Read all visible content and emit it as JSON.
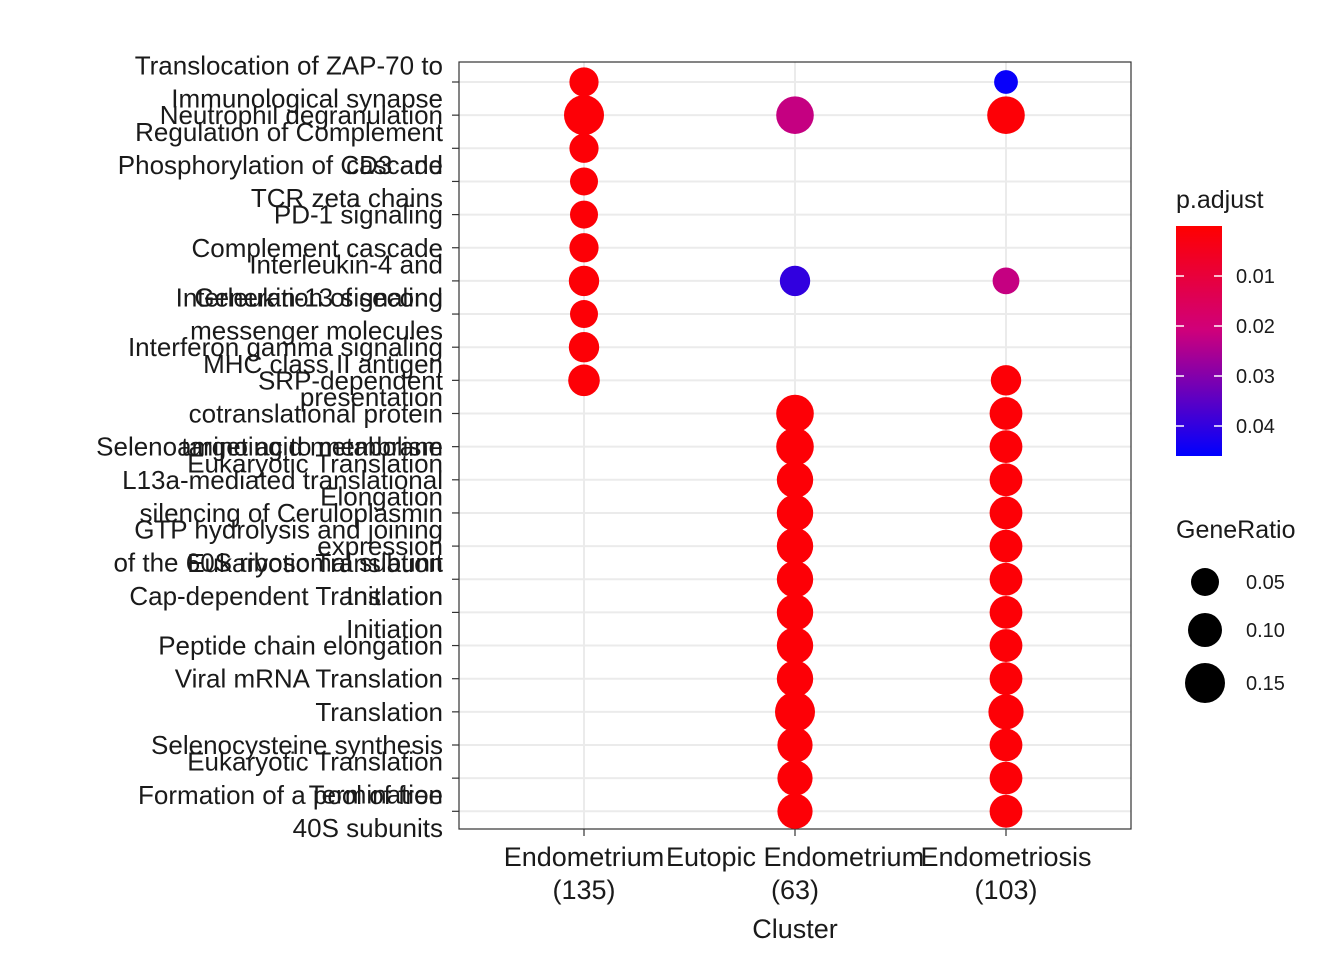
{
  "chart_data": {
    "type": "scatter",
    "chart_kind": "dotplot",
    "title": "",
    "xlabel": "Cluster",
    "ylabel": "",
    "grid": true,
    "legend_placement": "right",
    "clusters": [
      [
        "Endometrium",
        "(135)"
      ],
      [
        "Eutopic Endometrium",
        "(63)"
      ],
      [
        "Endometriosis",
        "(103)"
      ]
    ],
    "terms": [
      [
        "Translocation of ZAP-70 to",
        "Immunological synapse"
      ],
      [
        "Neutrophil degranulation"
      ],
      [
        "Regulation of Complement",
        "cascade"
      ],
      [
        "Phosphorylation of CD3 and",
        "TCR zeta chains"
      ],
      [
        "PD-1 signaling"
      ],
      [
        "Complement cascade"
      ],
      [
        "Interleukin-4 and",
        "Interleukin-13 signaling"
      ],
      [
        "Generation of second",
        "messenger molecules"
      ],
      [
        "Interferon gamma signaling"
      ],
      [
        "MHC class II antigen",
        "presentation"
      ],
      [
        "SRP-dependent",
        "cotranslational protein",
        "targeting to membrane"
      ],
      [
        "Selenoamino acid metabolism"
      ],
      [
        "Eukaryotic Translation",
        "Elongation"
      ],
      [
        "L13a-mediated translational",
        "silencing of Ceruloplasmin",
        "expression"
      ],
      [
        "GTP hydrolysis and joining",
        "of the 60S ribosomal subunit"
      ],
      [
        "Eukaryotic Translation",
        "Initiation"
      ],
      [
        "Cap-dependent Translation",
        "Initiation"
      ],
      [
        "Peptide chain elongation"
      ],
      [
        "Viral mRNA Translation"
      ],
      [
        "Translation"
      ],
      [
        "Selenocysteine synthesis"
      ],
      [
        "Eukaryotic Translation",
        "Termination"
      ],
      [
        "Formation of a pool of free",
        "40S subunits"
      ]
    ],
    "points": [
      {
        "cluster": 0,
        "term": 0,
        "gene_ratio": 0.06,
        "p_adjust": 0.001
      },
      {
        "cluster": 0,
        "term": 1,
        "gene_ratio": 0.15,
        "p_adjust": 0.001
      },
      {
        "cluster": 0,
        "term": 2,
        "gene_ratio": 0.06,
        "p_adjust": 0.001
      },
      {
        "cluster": 0,
        "term": 3,
        "gene_ratio": 0.05,
        "p_adjust": 0.001
      },
      {
        "cluster": 0,
        "term": 4,
        "gene_ratio": 0.05,
        "p_adjust": 0.001
      },
      {
        "cluster": 0,
        "term": 5,
        "gene_ratio": 0.06,
        "p_adjust": 0.001
      },
      {
        "cluster": 0,
        "term": 6,
        "gene_ratio": 0.07,
        "p_adjust": 0.001
      },
      {
        "cluster": 0,
        "term": 7,
        "gene_ratio": 0.05,
        "p_adjust": 0.001
      },
      {
        "cluster": 0,
        "term": 8,
        "gene_ratio": 0.07,
        "p_adjust": 0.001
      },
      {
        "cluster": 0,
        "term": 9,
        "gene_ratio": 0.08,
        "p_adjust": 0.001
      },
      {
        "cluster": 1,
        "term": 1,
        "gene_ratio": 0.13,
        "p_adjust": 0.022
      },
      {
        "cluster": 1,
        "term": 6,
        "gene_ratio": 0.07,
        "p_adjust": 0.04
      },
      {
        "cluster": 1,
        "term": 10,
        "gene_ratio": 0.13,
        "p_adjust": 0.001
      },
      {
        "cluster": 1,
        "term": 11,
        "gene_ratio": 0.13,
        "p_adjust": 0.001
      },
      {
        "cluster": 1,
        "term": 12,
        "gene_ratio": 0.12,
        "p_adjust": 0.001
      },
      {
        "cluster": 1,
        "term": 13,
        "gene_ratio": 0.12,
        "p_adjust": 0.001
      },
      {
        "cluster": 1,
        "term": 14,
        "gene_ratio": 0.12,
        "p_adjust": 0.001
      },
      {
        "cluster": 1,
        "term": 15,
        "gene_ratio": 0.12,
        "p_adjust": 0.001
      },
      {
        "cluster": 1,
        "term": 16,
        "gene_ratio": 0.12,
        "p_adjust": 0.001
      },
      {
        "cluster": 1,
        "term": 17,
        "gene_ratio": 0.12,
        "p_adjust": 0.001
      },
      {
        "cluster": 1,
        "term": 18,
        "gene_ratio": 0.12,
        "p_adjust": 0.001
      },
      {
        "cluster": 1,
        "term": 19,
        "gene_ratio": 0.15,
        "p_adjust": 0.001
      },
      {
        "cluster": 1,
        "term": 20,
        "gene_ratio": 0.11,
        "p_adjust": 0.001
      },
      {
        "cluster": 1,
        "term": 21,
        "gene_ratio": 0.11,
        "p_adjust": 0.001
      },
      {
        "cluster": 1,
        "term": 22,
        "gene_ratio": 0.11,
        "p_adjust": 0.001
      },
      {
        "cluster": 2,
        "term": 0,
        "gene_ratio": 0.015,
        "p_adjust": 0.045
      },
      {
        "cluster": 2,
        "term": 1,
        "gene_ratio": 0.13,
        "p_adjust": 0.001
      },
      {
        "cluster": 2,
        "term": 6,
        "gene_ratio": 0.04,
        "p_adjust": 0.022
      },
      {
        "cluster": 2,
        "term": 9,
        "gene_ratio": 0.07,
        "p_adjust": 0.001
      },
      {
        "cluster": 2,
        "term": 10,
        "gene_ratio": 0.09,
        "p_adjust": 0.001
      },
      {
        "cluster": 2,
        "term": 11,
        "gene_ratio": 0.09,
        "p_adjust": 0.001
      },
      {
        "cluster": 2,
        "term": 12,
        "gene_ratio": 0.09,
        "p_adjust": 0.001
      },
      {
        "cluster": 2,
        "term": 13,
        "gene_ratio": 0.09,
        "p_adjust": 0.001
      },
      {
        "cluster": 2,
        "term": 14,
        "gene_ratio": 0.09,
        "p_adjust": 0.001
      },
      {
        "cluster": 2,
        "term": 15,
        "gene_ratio": 0.09,
        "p_adjust": 0.001
      },
      {
        "cluster": 2,
        "term": 16,
        "gene_ratio": 0.09,
        "p_adjust": 0.001
      },
      {
        "cluster": 2,
        "term": 17,
        "gene_ratio": 0.09,
        "p_adjust": 0.001
      },
      {
        "cluster": 2,
        "term": 18,
        "gene_ratio": 0.09,
        "p_adjust": 0.001
      },
      {
        "cluster": 2,
        "term": 19,
        "gene_ratio": 0.11,
        "p_adjust": 0.001
      },
      {
        "cluster": 2,
        "term": 20,
        "gene_ratio": 0.09,
        "p_adjust": 0.001
      },
      {
        "cluster": 2,
        "term": 21,
        "gene_ratio": 0.09,
        "p_adjust": 0.001
      },
      {
        "cluster": 2,
        "term": 22,
        "gene_ratio": 0.09,
        "p_adjust": 0.001
      }
    ],
    "legend_padjust": {
      "title": "p.adjust",
      "ticks": [
        0.01,
        0.02,
        0.03,
        0.04
      ],
      "tick_labels": [
        "0.01",
        "0.02",
        "0.03",
        "0.04"
      ],
      "range": [
        0.0,
        0.046
      ],
      "color_low_p": "#ff0000",
      "color_mid_p": "#c000a0",
      "color_high_p": "#0000ff"
    },
    "legend_generatio": {
      "title": "GeneRatio",
      "values": [
        0.05,
        0.1,
        0.15
      ],
      "labels": [
        "0.05",
        "0.10",
        "0.15"
      ]
    }
  }
}
